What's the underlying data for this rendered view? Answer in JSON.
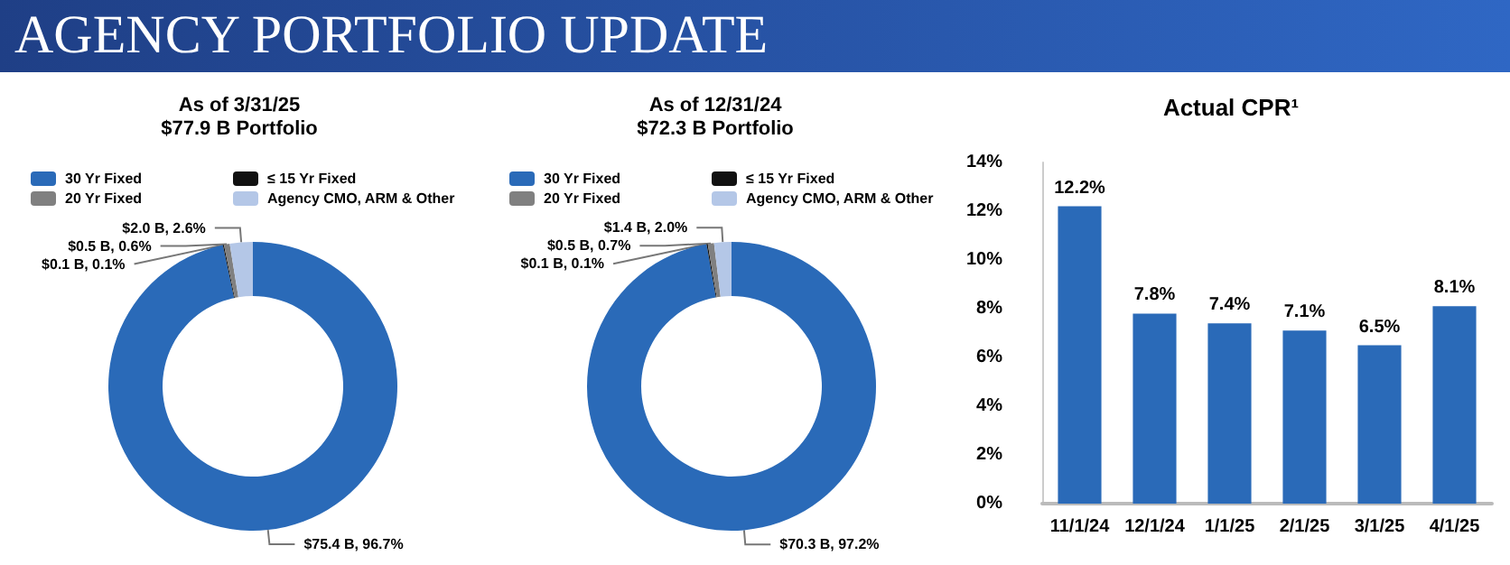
{
  "chart_data": [
    {
      "type": "donut",
      "title": "As of 3/31/25",
      "subtitle": "$77.9 B Portfolio",
      "annotations": [
        "AGENCY PORTFOLIO UPDATE"
      ],
      "legend": "top",
      "categories": [
        "30 Yr Fixed",
        "≤ 15 Yr Fixed",
        "20 Yr Fixed",
        "Agency CMO, ARM & Other"
      ],
      "values": [
        75.4,
        0.1,
        0.5,
        2.0
      ],
      "value_labels": [
        "$75.4 B, 96.7%",
        "$0.1 B, 0.1%",
        "$0.5 B, 0.6%",
        "$2.0 B, 2.6%"
      ],
      "colors": [
        "#2a6ab8",
        "#111111",
        "#808080",
        "#b4c7e7"
      ]
    },
    {
      "type": "donut",
      "title": "As of 12/31/24",
      "subtitle": "$72.3 B Portfolio",
      "legend": "top",
      "categories": [
        "30 Yr Fixed",
        "≤ 15 Yr Fixed",
        "20 Yr Fixed",
        "Agency CMO, ARM & Other"
      ],
      "values": [
        70.3,
        0.1,
        0.5,
        1.4
      ],
      "value_labels": [
        "$70.3 B, 97.2%",
        "$0.1 B, 0.1%",
        "$0.5 B, 0.7%",
        "$1.4 B, 2.0%"
      ],
      "colors": [
        "#2a6ab8",
        "#111111",
        "#808080",
        "#b4c7e7"
      ]
    },
    {
      "type": "bar",
      "title": "Actual CPR¹",
      "categories": [
        "11/1/24",
        "12/1/24",
        "1/1/25",
        "2/1/25",
        "3/1/25",
        "4/1/25"
      ],
      "values": [
        12.2,
        7.8,
        7.4,
        7.1,
        6.5,
        8.1
      ],
      "color": "#2a6ab8",
      "value_labels": [
        "12.2%",
        "7.8%",
        "7.4%",
        "7.1%",
        "6.5%",
        "8.1%"
      ],
      "ylim": [
        0,
        14
      ],
      "yticks": [
        {
          "value": 0,
          "label": "0%"
        },
        {
          "value": 2,
          "label": "2%"
        },
        {
          "value": 4,
          "label": "4%"
        },
        {
          "value": 6,
          "label": "6%"
        },
        {
          "value": 8,
          "label": "8%"
        },
        {
          "value": 10,
          "label": "10%"
        },
        {
          "value": 12,
          "label": "12%"
        },
        {
          "value": 14,
          "label": "14%"
        }
      ],
      "grid": false
    }
  ]
}
